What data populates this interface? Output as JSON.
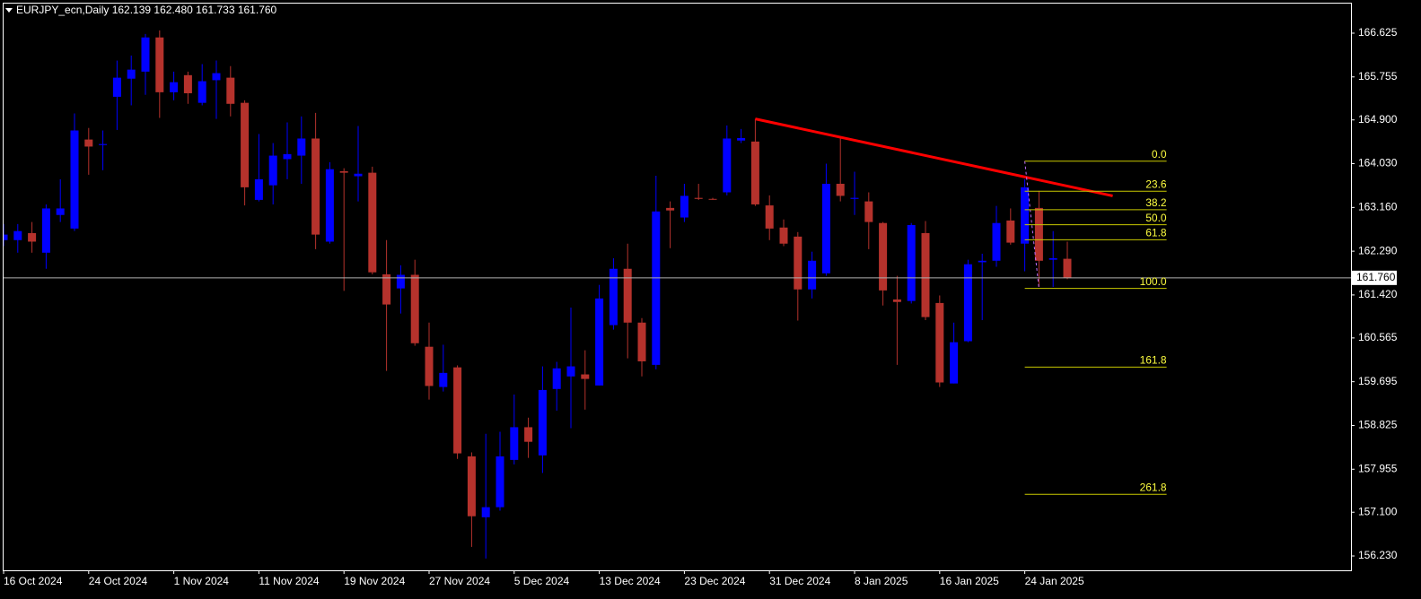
{
  "chart_data": {
    "type": "candlestick",
    "title": "EURJPY_ecn,Daily  162.139 162.480 161.733 161.760",
    "bull_color": "#0000ff",
    "bear_color": "#b5322c",
    "xlim": [
      0,
      95
    ],
    "xticks": [
      {
        "value": 0,
        "label": "16 Oct 2024"
      },
      {
        "value": 6,
        "label": "24 Oct 2024"
      },
      {
        "value": 12,
        "label": "1 Nov 2024"
      },
      {
        "value": 18,
        "label": "11 Nov 2024"
      },
      {
        "value": 24,
        "label": "19 Nov 2024"
      },
      {
        "value": 30,
        "label": "27 Nov 2024"
      },
      {
        "value": 36,
        "label": "5 Dec 2024"
      },
      {
        "value": 42,
        "label": "13 Dec 2024"
      },
      {
        "value": 48,
        "label": "23 Dec 2024"
      },
      {
        "value": 54,
        "label": "31 Dec 2024"
      },
      {
        "value": 60,
        "label": "8 Jan 2025"
      },
      {
        "value": 66,
        "label": "16 Jan 2025"
      },
      {
        "value": 72,
        "label": "24 Jan 2025"
      }
    ],
    "ylim": [
      155.945,
      167.213
    ],
    "yticks": [
      166.625,
      165.755,
      {
        "value": 164.9,
        "label": "164.900"
      },
      {
        "value": 164.03,
        "label": "164.030"
      },
      {
        "value": 163.16,
        "label": "163.160"
      },
      {
        "value": 162.29,
        "label": "162.290"
      },
      {
        "value": 161.42,
        "label": "161.420"
      },
      160.565,
      159.695,
      158.825,
      157.955,
      {
        "value": 157.1,
        "label": "157.100"
      },
      {
        "value": 156.23,
        "label": "156.230"
      }
    ],
    "last_price": {
      "value": 161.76,
      "label": "161.760"
    },
    "open": [
      162.51,
      162.51,
      162.65,
      162.26,
      163.01,
      162.74,
      164.51,
      164.4,
      165.36,
      165.72,
      165.86,
      166.54,
      165.45,
      165.79,
      165.24,
      165.69,
      165.74,
      165.24,
      163.31,
      163.6,
      164.12,
      164.19,
      164.53,
      162.48,
      163.88,
      163.78,
      163.85,
      161.83,
      161.55,
      161.82,
      160.39,
      159.59,
      159.98,
      158.21,
      157.0,
      157.2,
      158.14,
      158.79,
      158.23,
      159.55,
      159.8,
      159.84,
      159.62,
      160.82,
      161.94,
      160.87,
      160.03,
      163.15,
      162.96,
      163.35,
      163.33,
      163.46,
      164.49,
      164.47,
      163.2,
      162.76,
      162.58,
      161.53,
      161.85,
      163.63,
      163.33,
      163.28,
      162.85,
      161.33,
      161.3,
      162.65,
      161.26,
      159.66,
      160.5,
      162.07,
      162.1,
      162.9,
      162.44,
      163.15,
      162.12,
      162.139
    ],
    "high": [
      162.83,
      162.83,
      162.87,
      163.22,
      163.72,
      165.03,
      164.74,
      164.69,
      166.08,
      166.18,
      166.61,
      166.68,
      165.86,
      165.86,
      166.01,
      166.08,
      165.97,
      165.29,
      164.62,
      164.44,
      164.85,
      164.97,
      165.04,
      164.06,
      163.94,
      164.78,
      163.97,
      162.51,
      162.01,
      162.12,
      160.87,
      160.43,
      160.02,
      158.29,
      158.66,
      158.7,
      159.44,
      158.98,
      160.0,
      160.09,
      161.17,
      160.32,
      161.62,
      162.15,
      162.44,
      160.96,
      163.79,
      163.28,
      163.63,
      163.63,
      163.35,
      164.79,
      164.72,
      164.92,
      163.4,
      162.92,
      162.67,
      162.28,
      164.03,
      164.53,
      163.87,
      163.46,
      162.87,
      161.8,
      162.85,
      162.89,
      161.41,
      160.87,
      162.12,
      162.24,
      163.19,
      163.14,
      163.72,
      163.49,
      162.69,
      162.48
    ],
    "low": [
      162.39,
      162.26,
      162.26,
      161.94,
      162.87,
      162.69,
      163.81,
      163.9,
      164.7,
      165.19,
      165.4,
      164.94,
      165.29,
      165.22,
      165.19,
      164.92,
      164.97,
      163.2,
      163.28,
      163.22,
      163.72,
      163.63,
      162.33,
      162.44,
      161.5,
      163.28,
      161.83,
      159.91,
      161.05,
      160.41,
      159.34,
      159.5,
      158.16,
      156.41,
      156.18,
      157.13,
      158.05,
      158.18,
      157.88,
      159.12,
      158.77,
      159.14,
      159.62,
      160.73,
      160.16,
      159.8,
      159.94,
      162.35,
      162.87,
      163.31,
      163.31,
      163.4,
      164.44,
      163.19,
      162.51,
      162.39,
      160.91,
      161.35,
      161.8,
      163.28,
      163.01,
      162.33,
      161.21,
      160.03,
      161.25,
      160.92,
      159.59,
      159.66,
      160.48,
      160.92,
      161.98,
      162.42,
      161.89,
      161.58,
      161.58,
      161.733
    ],
    "close": [
      162.62,
      162.69,
      162.48,
      163.14,
      163.14,
      164.69,
      164.37,
      164.42,
      165.74,
      165.9,
      166.54,
      165.45,
      165.65,
      165.43,
      165.67,
      165.83,
      165.22,
      163.56,
      163.72,
      164.19,
      164.22,
      164.53,
      162.62,
      163.92,
      163.85,
      163.83,
      161.87,
      161.23,
      161.82,
      160.46,
      159.61,
      159.87,
      158.27,
      157.02,
      157.2,
      158.21,
      158.79,
      158.5,
      159.53,
      159.96,
      160.0,
      159.75,
      161.35,
      161.94,
      160.87,
      160.1,
      163.08,
      163.1,
      163.39,
      163.33,
      163.32,
      164.53,
      164.54,
      163.22,
      162.74,
      162.44,
      161.53,
      162.1,
      163.63,
      163.39,
      163.35,
      162.87,
      161.51,
      161.28,
      162.81,
      160.98,
      159.68,
      160.48,
      162.03,
      162.1,
      162.85,
      162.46,
      163.56,
      162.1,
      162.15,
      161.76
    ],
    "trendline": {
      "color": "#ff0000",
      "x": [
        53,
        78.2
      ],
      "y": [
        164.92,
        163.39
      ]
    },
    "fibonacci": {
      "color": "#c8c800",
      "high": 164.08,
      "low": 161.55,
      "x": [
        72,
        73,
        82
      ],
      "levels": [
        {
          "value": 0,
          "label": "0.0"
        },
        23.6,
        38.2,
        {
          "value": 50,
          "label": "50.0"
        },
        61.8,
        {
          "value": 100,
          "label": "100.0"
        },
        161.8,
        261.8
      ]
    }
  }
}
